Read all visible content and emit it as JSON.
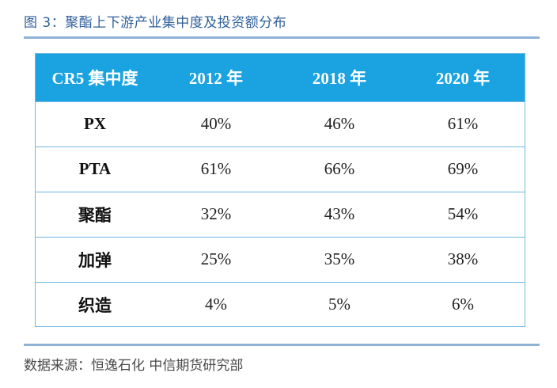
{
  "caption": "图 3：聚酯上下游产业集中度及投资额分布",
  "table": {
    "headers": [
      "CR5 集中度",
      "2012 年",
      "2018 年",
      "2020 年"
    ],
    "rows": [
      {
        "label": "PX",
        "values": [
          "40%",
          "46%",
          "61%"
        ]
      },
      {
        "label": "PTA",
        "values": [
          "61%",
          "66%",
          "69%"
        ]
      },
      {
        "label": "聚酯",
        "values": [
          "32%",
          "43%",
          "54%"
        ]
      },
      {
        "label": "加弹",
        "values": [
          "25%",
          "35%",
          "38%"
        ]
      },
      {
        "label": "织造",
        "values": [
          "4%",
          "5%",
          "6%"
        ]
      }
    ]
  },
  "source": "数据来源：恒逸石化  中信期货研究部",
  "colors": {
    "header_bg": "#1aa3e0",
    "caption_text": "#2f5f9a",
    "rule": "#8fb2d6",
    "grid": "#6fb8e3"
  }
}
